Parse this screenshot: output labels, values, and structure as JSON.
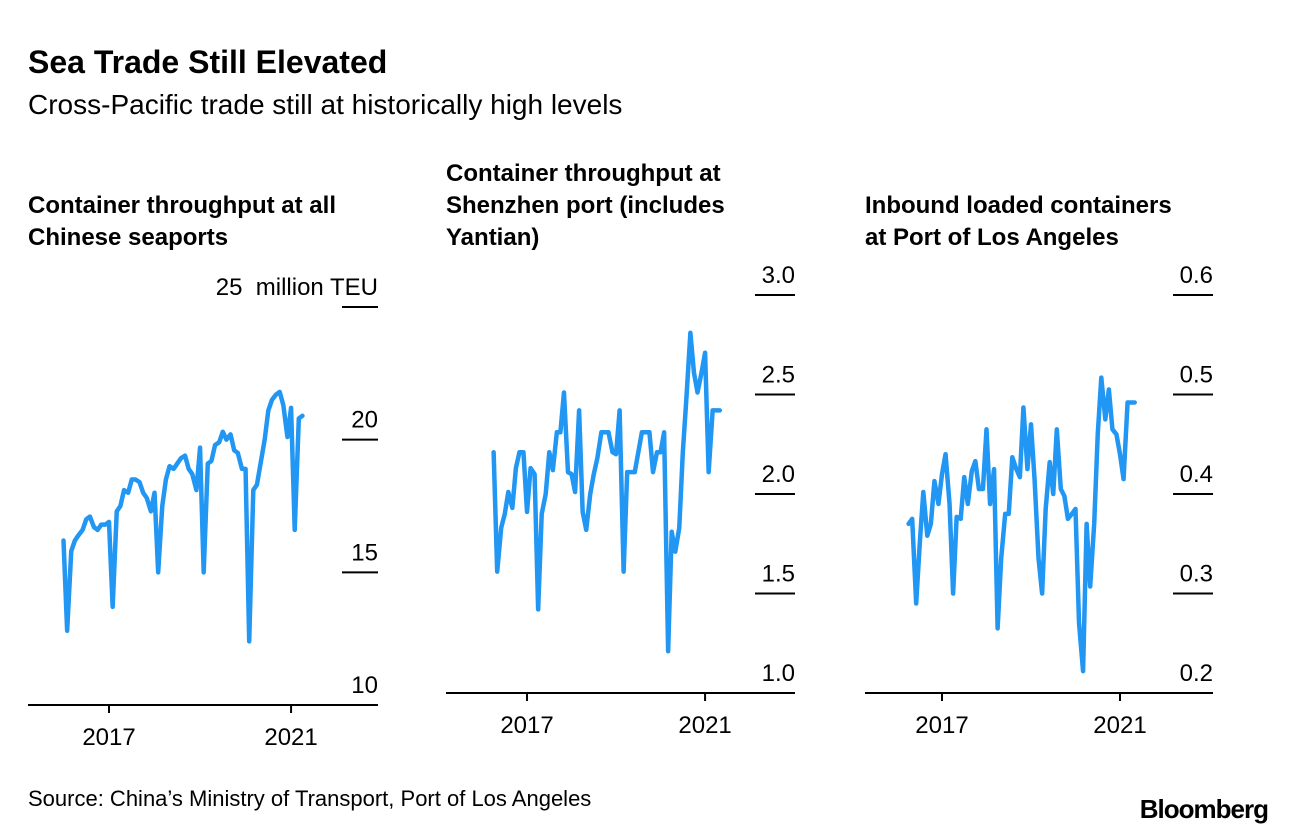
{
  "title": "Sea Trade Still Elevated",
  "subtitle": "Cross-Pacific trade still at historically high levels",
  "source": "Source: China’s Ministry of Transport, Port of Los Angeles",
  "logo": "Bloomberg",
  "chart_data": [
    {
      "type": "line",
      "title": [
        "Container throughput at all",
        "Chinese seaports"
      ],
      "color": "#2196f3",
      "x": [
        2016,
        2016.08,
        2016.17,
        2016.25,
        2016.33,
        2016.42,
        2016.5,
        2016.58,
        2016.67,
        2016.75,
        2016.83,
        2016.92,
        2017,
        2017.08,
        2017.17,
        2017.25,
        2017.33,
        2017.42,
        2017.5,
        2017.58,
        2017.67,
        2017.75,
        2017.83,
        2017.92,
        2018,
        2018.08,
        2018.17,
        2018.25,
        2018.33,
        2018.42,
        2018.5,
        2018.58,
        2018.67,
        2018.75,
        2018.83,
        2018.92,
        2019,
        2019.08,
        2019.17,
        2019.25,
        2019.33,
        2019.42,
        2019.5,
        2019.58,
        2019.67,
        2019.75,
        2019.83,
        2019.92,
        2020,
        2020.08,
        2020.17,
        2020.25,
        2020.33,
        2020.42,
        2020.5,
        2020.58,
        2020.67,
        2020.75,
        2020.83,
        2020.92,
        2021,
        2021.08,
        2021.17,
        2021.25
      ],
      "values": [
        16.2,
        12.8,
        15.8,
        16.2,
        16.4,
        16.6,
        17.0,
        17.1,
        16.7,
        16.6,
        16.8,
        16.8,
        16.9,
        13.7,
        17.3,
        17.5,
        18.1,
        18.0,
        18.5,
        18.5,
        18.4,
        18.0,
        17.8,
        17.3,
        18.0,
        15.0,
        17.5,
        18.5,
        19.0,
        18.9,
        19.1,
        19.3,
        19.4,
        18.9,
        18.7,
        18.1,
        19.7,
        15.0,
        19.1,
        19.2,
        19.8,
        19.9,
        20.3,
        20.0,
        20.2,
        19.6,
        19.5,
        18.9,
        18.9,
        12.4,
        18.1,
        18.3,
        19.1,
        20.0,
        21.1,
        21.5,
        21.7,
        21.8,
        21.3,
        20.1,
        21.2,
        16.6,
        20.8,
        20.9
      ],
      "xlim": [
        2015.22,
        2022.91
      ],
      "xticks": [
        2017,
        2021
      ],
      "ylim": [
        10,
        25
      ],
      "yticks": [
        10,
        15,
        20,
        {
          "value": 25,
          "label": "25  million TEU"
        }
      ]
    },
    {
      "type": "line",
      "title": [
        "Container throughput at",
        "Shenzhen port (includes",
        "Yantian)"
      ],
      "color": "#2196f3",
      "x": [
        2016.25,
        2016.33,
        2016.42,
        2016.5,
        2016.58,
        2016.67,
        2016.75,
        2016.83,
        2016.92,
        2017,
        2017.08,
        2017.17,
        2017.25,
        2017.33,
        2017.42,
        2017.5,
        2017.58,
        2017.67,
        2017.75,
        2017.83,
        2017.92,
        2018,
        2018.08,
        2018.17,
        2018.25,
        2018.33,
        2018.42,
        2018.5,
        2018.58,
        2018.67,
        2018.75,
        2018.83,
        2018.92,
        2019,
        2019.08,
        2019.17,
        2019.25,
        2019.33,
        2019.42,
        2019.5,
        2019.58,
        2019.67,
        2019.75,
        2019.83,
        2019.92,
        2020,
        2020.08,
        2020.17,
        2020.25,
        2020.33,
        2020.42,
        2020.5,
        2020.58,
        2020.67,
        2020.75,
        2020.83,
        2020.92,
        2021,
        2021.08,
        2021.17,
        2021.25,
        2021.33
      ],
      "values": [
        2.21,
        1.61,
        1.83,
        1.9,
        2.01,
        1.93,
        2.13,
        2.21,
        2.21,
        1.91,
        2.13,
        2.1,
        1.42,
        1.9,
        2.0,
        2.21,
        2.12,
        2.31,
        2.31,
        2.51,
        2.11,
        2.1,
        2.01,
        2.42,
        1.91,
        1.82,
        2.0,
        2.1,
        2.18,
        2.31,
        2.31,
        2.31,
        2.21,
        2.2,
        2.42,
        1.61,
        2.11,
        2.11,
        2.11,
        2.21,
        2.31,
        2.31,
        2.31,
        2.11,
        2.21,
        2.21,
        2.31,
        1.21,
        1.81,
        1.71,
        1.83,
        2.21,
        2.48,
        2.81,
        2.61,
        2.51,
        2.61,
        2.71,
        2.11,
        2.42,
        2.42,
        2.42
      ],
      "xlim": [
        2015.18,
        2023.02
      ],
      "xticks": [
        2017,
        2021
      ],
      "ylim": [
        1,
        3
      ],
      "yticks": [
        {
          "value": 1,
          "label": "1.0"
        },
        1.5,
        {
          "value": 2,
          "label": "2.0"
        },
        2.5,
        {
          "value": 3,
          "label": "3.0"
        }
      ]
    },
    {
      "type": "line",
      "title": [
        "Inbound loaded containers",
        "at Port of Los Angeles"
      ],
      "color": "#2196f3",
      "x": [
        2016.25,
        2016.33,
        2016.42,
        2016.5,
        2016.58,
        2016.67,
        2016.75,
        2016.83,
        2016.92,
        2017,
        2017.08,
        2017.17,
        2017.25,
        2017.33,
        2017.42,
        2017.5,
        2017.58,
        2017.67,
        2017.75,
        2017.83,
        2017.92,
        2018,
        2018.08,
        2018.17,
        2018.25,
        2018.33,
        2018.42,
        2018.5,
        2018.58,
        2018.67,
        2018.75,
        2018.83,
        2018.92,
        2019,
        2019.08,
        2019.17,
        2019.25,
        2019.33,
        2019.42,
        2019.5,
        2019.58,
        2019.67,
        2019.75,
        2019.83,
        2019.92,
        2020,
        2020.08,
        2020.17,
        2020.25,
        2020.33,
        2020.42,
        2020.5,
        2020.58,
        2020.67,
        2020.75,
        2020.83,
        2020.92,
        2021,
        2021.08,
        2021.17,
        2021.25,
        2021.33
      ],
      "values": [
        0.37,
        0.375,
        0.29,
        0.35,
        0.402,
        0.358,
        0.37,
        0.413,
        0.39,
        0.42,
        0.44,
        0.39,
        0.3,
        0.377,
        0.375,
        0.417,
        0.39,
        0.423,
        0.433,
        0.405,
        0.405,
        0.465,
        0.39,
        0.425,
        0.265,
        0.335,
        0.38,
        0.38,
        0.437,
        0.425,
        0.417,
        0.487,
        0.425,
        0.47,
        0.415,
        0.335,
        0.3,
        0.385,
        0.432,
        0.4,
        0.465,
        0.405,
        0.398,
        0.375,
        0.38,
        0.385,
        0.27,
        0.222,
        0.37,
        0.307,
        0.37,
        0.46,
        0.517,
        0.475,
        0.505,
        0.465,
        0.46,
        0.44,
        0.415,
        0.492,
        0.492,
        0.492
      ],
      "xlim": [
        2015.27,
        2023.09
      ],
      "xticks": [
        2017,
        2021
      ],
      "ylim": [
        0.2,
        0.6
      ],
      "yticks": [
        0.2,
        0.3,
        0.4,
        0.5,
        0.6
      ]
    }
  ]
}
